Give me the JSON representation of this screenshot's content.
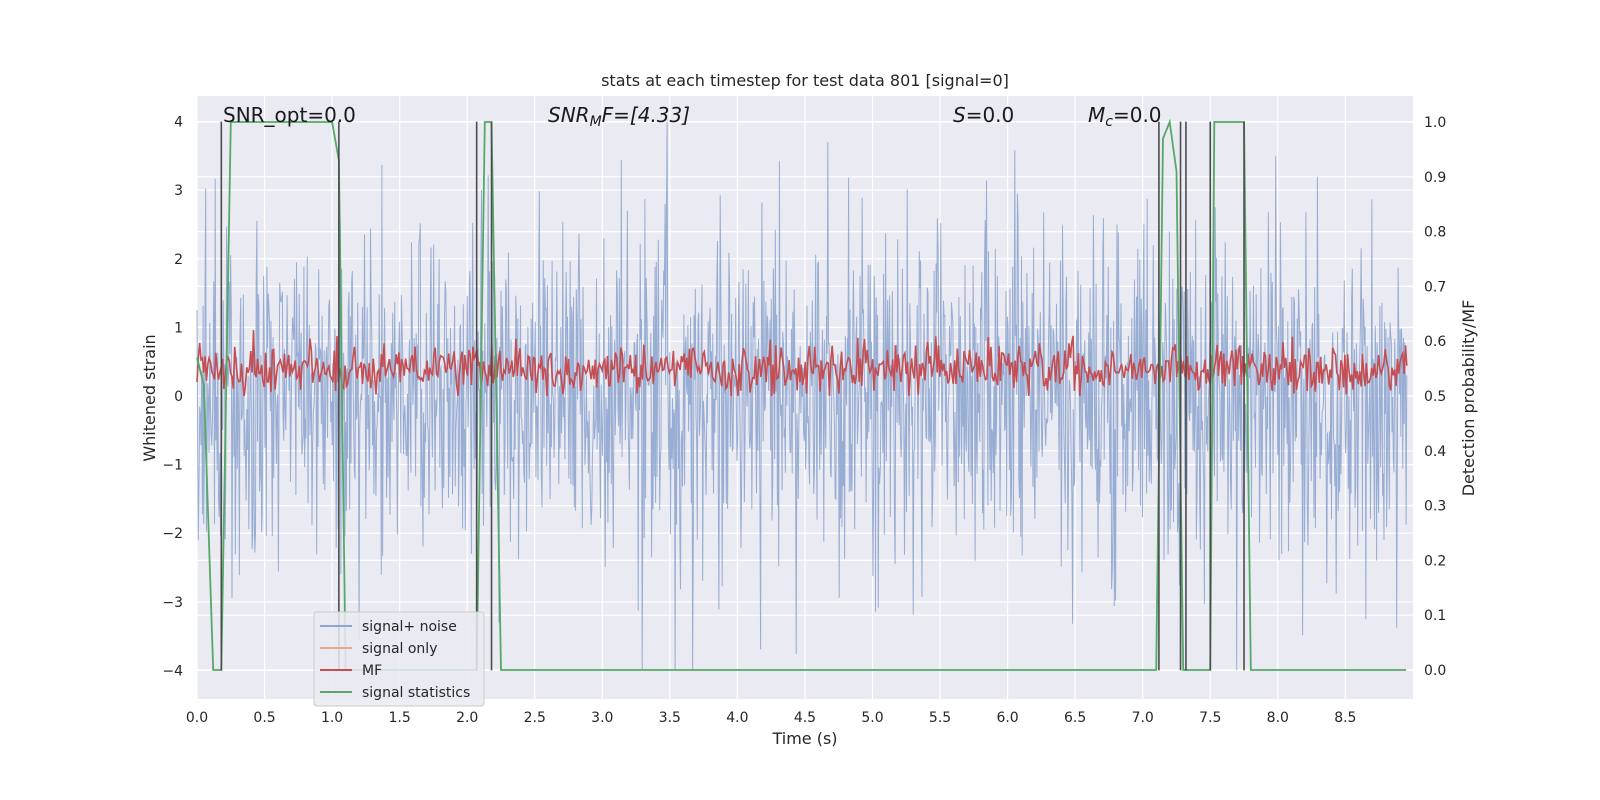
{
  "chart_data": {
    "type": "line",
    "title": "stats at each timestep for test data 801 [signal=0]",
    "xlabel": "Time (s)",
    "ylabel": "Whitened strain",
    "ylabel_right": "Detection probability/MF",
    "xlim": [
      0.0,
      9.0
    ],
    "ylim": [
      -4.4,
      4.4
    ],
    "ylim_right": [
      -0.05,
      1.05
    ],
    "xticks": [
      "0.0",
      "0.5",
      "1.0",
      "1.5",
      "2.0",
      "2.5",
      "3.0",
      "3.5",
      "4.0",
      "4.5",
      "5.0",
      "5.5",
      "6.0",
      "6.5",
      "7.0",
      "7.5",
      "8.0",
      "8.5"
    ],
    "yticks": [
      "4",
      "3",
      "2",
      "1",
      "0",
      "−1",
      "−2",
      "−3",
      "−4"
    ],
    "yticks_right": [
      "1.0",
      "0.9",
      "0.8",
      "0.7",
      "0.6",
      "0.5",
      "0.4",
      "0.3",
      "0.2",
      "0.1",
      "0.0"
    ],
    "grid": true,
    "legend_position": "lower-left",
    "annotations": {
      "snr_opt": "SNR_opt=0.0",
      "snr_mf_base": "SNR",
      "snr_mf_sub": "M",
      "snr_mf_tail": "F=[4.33]",
      "s_base": "S",
      "s_tail": "=0.0",
      "mc_base": "M",
      "mc_sub": "c",
      "mc_tail": "=0.0"
    },
    "series": [
      {
        "name": "signal+ noise",
        "color": "#8fa6cf",
        "noise_amplitude": 1.25,
        "peak_max": 4.0,
        "peak_min": -4.0
      },
      {
        "name": "signal only",
        "color": "#e8a98a",
        "values": []
      },
      {
        "name": "MF",
        "color": "#c44e52",
        "mean": 0.55,
        "min": 0.5,
        "max": 0.62
      },
      {
        "name": "signal statistics",
        "color": "#55a868",
        "x": [
          0.0,
          0.05,
          0.12,
          0.18,
          0.25,
          1.0,
          1.05,
          1.1,
          1.17,
          2.0,
          2.07,
          2.13,
          2.18,
          2.25,
          2.3,
          7.1,
          7.15,
          7.2,
          7.25,
          7.3,
          7.33,
          7.38,
          7.5,
          7.53,
          7.75,
          7.8,
          8.95
        ],
        "y": [
          0.57,
          0.52,
          0.0,
          0.0,
          1.0,
          1.0,
          0.93,
          0.0,
          0.0,
          0.0,
          0.0,
          1.0,
          1.0,
          0.0,
          0.0,
          0.0,
          0.97,
          1.0,
          0.91,
          0.0,
          0.0,
          0.0,
          0.0,
          1.0,
          1.0,
          0.0,
          0.0
        ]
      }
    ],
    "vertical_markers": [
      0.18,
      1.05,
      2.07,
      2.18,
      7.12,
      7.28,
      7.32,
      7.5,
      7.75
    ]
  }
}
